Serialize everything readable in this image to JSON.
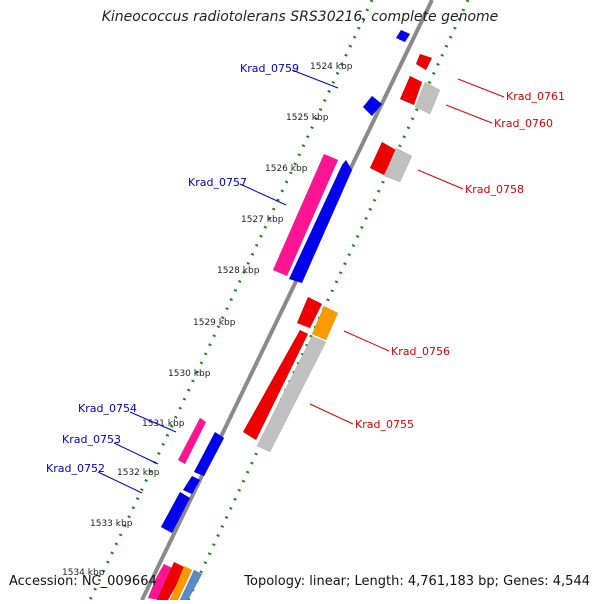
{
  "title": "Kineococcus radiotolerans SRS30216, complete genome",
  "footer": {
    "accession": "Accession: NC_009664",
    "summary": "Topology: linear; Length: 4,761,183 bp; Genes: 4,544"
  },
  "scale": {
    "ticks": [
      "1524 kbp",
      "1525 kbp",
      "1526 kbp",
      "1527 kbp",
      "1528 kbp",
      "1529 kbp",
      "1530 kbp",
      "1531 kbp",
      "1532 kbp",
      "1533 kbp",
      "1534 kbp"
    ]
  },
  "gene_labels": {
    "forward": [
      "Krad_0759",
      "Krad_0757",
      "Krad_0754",
      "Krad_0753",
      "Krad_0752"
    ],
    "reverse": [
      "Krad_0761",
      "Krad_0760",
      "Krad_0758",
      "Krad_0756",
      "Krad_0755"
    ]
  },
  "colors": {
    "backbone": "#8a8a8a",
    "forward_label": "#0000cc",
    "reverse_label": "#dd0000",
    "cds_forward": "#0000ee",
    "cds_reverse": "#ee0000",
    "rna_forward": "#ff1493",
    "orf_gray": "#c0c0c0",
    "orf_orange": "#ff9900",
    "orf_steelblue": "#5a8ac6",
    "tick_dots": "#1a8a1a",
    "tick_label": "#222222"
  }
}
